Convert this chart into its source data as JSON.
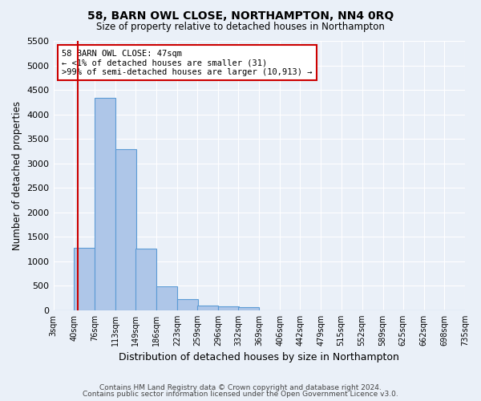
{
  "title": "58, BARN OWL CLOSE, NORTHAMPTON, NN4 0RQ",
  "subtitle": "Size of property relative to detached houses in Northampton",
  "xlabel": "Distribution of detached houses by size in Northampton",
  "ylabel": "Number of detached properties",
  "footer_line1": "Contains HM Land Registry data © Crown copyright and database right 2024.",
  "footer_line2": "Contains public sector information licensed under the Open Government Licence v3.0.",
  "annotation_line1": "58 BARN OWL CLOSE: 47sqm",
  "annotation_line2": "← <1% of detached houses are smaller (31)",
  "annotation_line3": ">99% of semi-detached houses are larger (10,913) →",
  "property_size_sqm": 47,
  "bar_left_edges": [
    3,
    40,
    76,
    113,
    149,
    186,
    223,
    259,
    296,
    332,
    369,
    406,
    442,
    479,
    515,
    552,
    589,
    625,
    662,
    698
  ],
  "bar_heights": [
    0,
    1270,
    4340,
    3300,
    1260,
    490,
    230,
    100,
    80,
    60,
    0,
    0,
    0,
    0,
    0,
    0,
    0,
    0,
    0,
    0
  ],
  "bin_width": 37,
  "x_tick_labels": [
    "3sqm",
    "40sqm",
    "76sqm",
    "113sqm",
    "149sqm",
    "186sqm",
    "223sqm",
    "259sqm",
    "296sqm",
    "332sqm",
    "369sqm",
    "406sqm",
    "442sqm",
    "479sqm",
    "515sqm",
    "552sqm",
    "589sqm",
    "625sqm",
    "662sqm",
    "698sqm",
    "735sqm"
  ],
  "bar_color": "#aec6e8",
  "bar_edge_color": "#5b9bd5",
  "bg_color": "#eaf0f8",
  "grid_color": "#ffffff",
  "vline_color": "#cc0000",
  "annotation_box_edge_color": "#cc0000",
  "annotation_box_bg": "#ffffff",
  "ylim": [
    0,
    5500
  ],
  "yticks": [
    0,
    500,
    1000,
    1500,
    2000,
    2500,
    3000,
    3500,
    4000,
    4500,
    5000,
    5500
  ]
}
